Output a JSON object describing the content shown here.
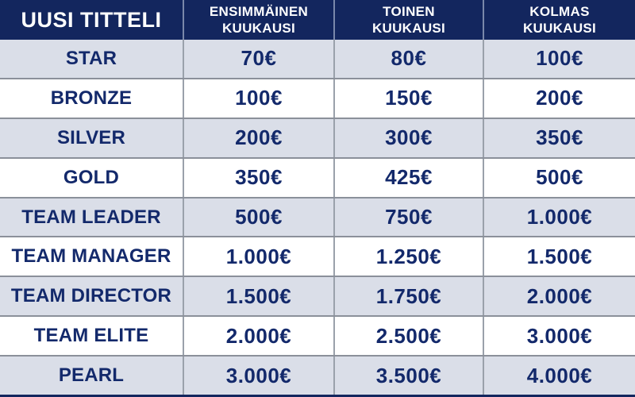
{
  "header": {
    "title_col": "UUSI TITTELI",
    "month_cols": [
      {
        "line1": "ENSIMMÄINEN",
        "line2": "KUUKAUSI"
      },
      {
        "line1": "TOINEN",
        "line2": "KUUKAUSI"
      },
      {
        "line1": "KOLMAS",
        "line2": "KUUKAUSI"
      }
    ]
  },
  "rows": [
    {
      "title": "STAR",
      "values": [
        "70€",
        "80€",
        "100€"
      ]
    },
    {
      "title": "BRONZE",
      "values": [
        "100€",
        "150€",
        "200€"
      ]
    },
    {
      "title": "SILVER",
      "values": [
        "200€",
        "300€",
        "350€"
      ]
    },
    {
      "title": "GOLD",
      "values": [
        "350€",
        "425€",
        "500€"
      ]
    },
    {
      "title": "TEAM LEADER",
      "values": [
        "500€",
        "750€",
        "1.000€"
      ]
    },
    {
      "title": "TEAM MANAGER",
      "values": [
        "1.000€",
        "1.250€",
        "1.500€"
      ]
    },
    {
      "title": "TEAM DIRECTOR",
      "values": [
        "1.500€",
        "1.750€",
        "2.000€"
      ]
    },
    {
      "title": "TEAM ELITE",
      "values": [
        "2.000€",
        "2.500€",
        "3.000€"
      ]
    },
    {
      "title": "PEARL",
      "values": [
        "3.000€",
        "3.500€",
        "4.000€"
      ]
    }
  ],
  "colors": {
    "header_bg": "#13265e",
    "header_text": "#ffffff",
    "row_alt_bg": "#dadee8",
    "row_bg": "#ffffff",
    "cell_text": "#13296b",
    "header_divider": "#7a88aa",
    "body_divider": "#9aa1ab",
    "row_border": "#8b909a"
  },
  "chart_data": {
    "type": "table",
    "title": "",
    "columns": [
      "UUSI TITTELI",
      "ENSIMMÄINEN KUUKAUSI",
      "TOINEN KUUKAUSI",
      "KOLMAS KUUKAUSI"
    ],
    "rows": [
      [
        "STAR",
        "70€",
        "80€",
        "100€"
      ],
      [
        "BRONZE",
        "100€",
        "150€",
        "200€"
      ],
      [
        "SILVER",
        "200€",
        "300€",
        "350€"
      ],
      [
        "GOLD",
        "350€",
        "425€",
        "500€"
      ],
      [
        "TEAM LEADER",
        "500€",
        "750€",
        "1.000€"
      ],
      [
        "TEAM MANAGER",
        "1.000€",
        "1.250€",
        "1.500€"
      ],
      [
        "TEAM DIRECTOR",
        "1.500€",
        "1.750€",
        "2.000€"
      ],
      [
        "TEAM ELITE",
        "2.000€",
        "2.500€",
        "3.000€"
      ],
      [
        "PEARL",
        "3.000€",
        "3.500€",
        "4.000€"
      ]
    ],
    "values_numeric_eur": {
      "STAR": [
        70,
        80,
        100
      ],
      "BRONZE": [
        100,
        150,
        200
      ],
      "SILVER": [
        200,
        300,
        350
      ],
      "GOLD": [
        350,
        425,
        500
      ],
      "TEAM LEADER": [
        500,
        750,
        1000
      ],
      "TEAM MANAGER": [
        1000,
        1250,
        1500
      ],
      "TEAM DIRECTOR": [
        1500,
        1750,
        2000
      ],
      "TEAM ELITE": [
        2000,
        2500,
        3000
      ],
      "PEARL": [
        3000,
        3500,
        4000
      ]
    }
  }
}
